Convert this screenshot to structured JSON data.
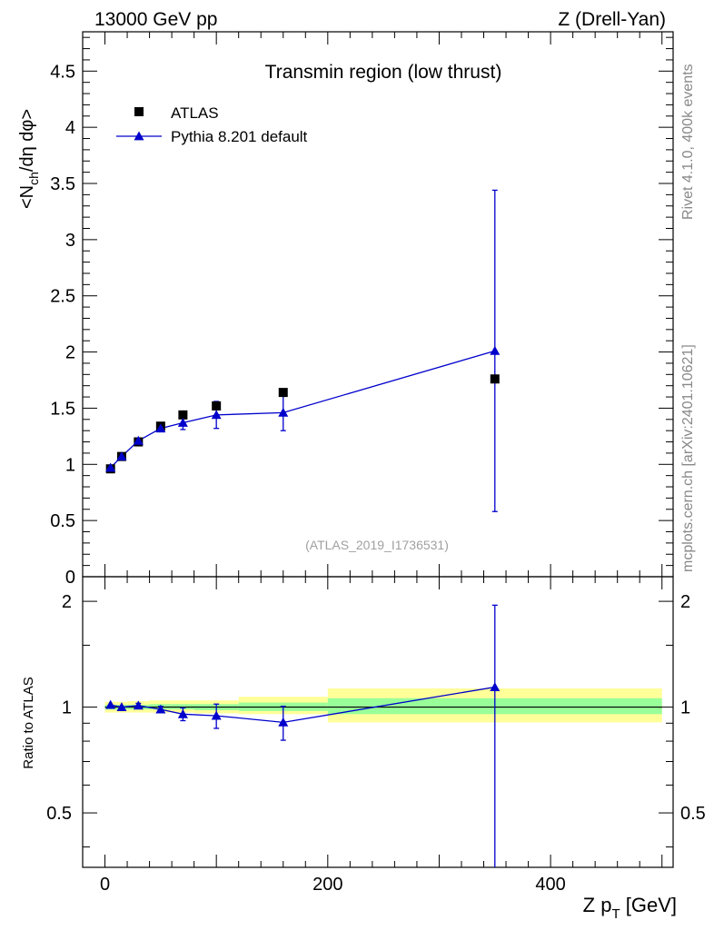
{
  "header": {
    "energy_label": "13000 GeV pp",
    "process_label": "Z (Drell-Yan)"
  },
  "side": {
    "rivet_label": "Rivet 4.1.0,  400k events",
    "source_label": "mcplots.cern.ch [arXiv:2401.10621]"
  },
  "chart_data": [
    {
      "type": "scatter",
      "panel": "main",
      "title": "Transmin region (low thrust)",
      "ylabel": "<N_ch/dη dφ>",
      "ylabel_parts": {
        "a": "<N",
        "sub": "ch",
        "b": "/dη dφ>"
      },
      "watermark": "(ATLAS_2019_I1736531)",
      "xlim": [
        -20,
        510
      ],
      "ylim": [
        0,
        4.85
      ],
      "yticks": [
        0,
        0.5,
        1,
        1.5,
        2,
        2.5,
        3,
        3.5,
        4,
        4.5
      ],
      "ytick_labels": [
        "0",
        "0.5",
        "1",
        "1.5",
        "2",
        "2.5",
        "3",
        "3.5",
        "4",
        "4.5"
      ],
      "legend_position": "top-left",
      "series": [
        {
          "name": "ATLAS",
          "marker": "square",
          "color": "#000000",
          "x": [
            5,
            15,
            30,
            50,
            70,
            100,
            160,
            350
          ],
          "y": [
            0.96,
            1.07,
            1.2,
            1.34,
            1.44,
            1.52,
            1.64,
            1.76
          ]
        },
        {
          "name": "Pythia 8.201 default",
          "marker": "triangle",
          "color": "#0000cc",
          "x": [
            5,
            15,
            30,
            50,
            70,
            100,
            160,
            350
          ],
          "y": [
            0.97,
            1.07,
            1.21,
            1.32,
            1.37,
            1.44,
            1.46,
            2.01
          ],
          "err": [
            0.02,
            0.02,
            0.02,
            0.03,
            0.06,
            0.12,
            0.16,
            1.43
          ]
        }
      ]
    },
    {
      "type": "scatter",
      "panel": "ratio",
      "ylabel": "Ratio to ATLAS",
      "xlabel": "Z p_T [GeV]",
      "xlabel_parts": {
        "a": "Z p",
        "sub": "T",
        "b": " [GeV]"
      },
      "xlim": [
        -20,
        510
      ],
      "xticks": [
        0,
        200,
        400
      ],
      "xtick_labels": [
        "0",
        "200",
        "400"
      ],
      "ylim": [
        0.35,
        2.35
      ],
      "yscale": "log",
      "yticks": [
        0.5,
        1,
        2
      ],
      "ytick_labels": [
        "0.5",
        "1",
        "2"
      ],
      "bands": [
        {
          "x0": 0,
          "x1": 10,
          "inner": [
            0.985,
            1.015
          ],
          "outer": [
            0.965,
            1.035
          ]
        },
        {
          "x0": 10,
          "x1": 20,
          "inner": [
            0.985,
            1.015
          ],
          "outer": [
            0.965,
            1.035
          ]
        },
        {
          "x0": 20,
          "x1": 40,
          "inner": [
            0.985,
            1.015
          ],
          "outer": [
            0.965,
            1.04
          ]
        },
        {
          "x0": 40,
          "x1": 60,
          "inner": [
            0.985,
            1.02
          ],
          "outer": [
            0.965,
            1.045
          ]
        },
        {
          "x0": 60,
          "x1": 80,
          "inner": [
            0.985,
            1.02
          ],
          "outer": [
            0.965,
            1.045
          ]
        },
        {
          "x0": 80,
          "x1": 120,
          "inner": [
            0.98,
            1.02
          ],
          "outer": [
            0.96,
            1.045
          ]
        },
        {
          "x0": 120,
          "x1": 200,
          "inner": [
            0.975,
            1.03
          ],
          "outer": [
            0.955,
            1.07
          ]
        },
        {
          "x0": 200,
          "x1": 500,
          "inner": [
            0.955,
            1.06
          ],
          "outer": [
            0.905,
            1.13
          ]
        }
      ],
      "series": [
        {
          "name": "Pythia 8.201 default / ATLAS",
          "color": "#0000cc",
          "x": [
            5,
            15,
            30,
            50,
            70,
            100,
            160,
            350
          ],
          "y": [
            1.015,
            1.0,
            1.01,
            0.985,
            0.955,
            0.945,
            0.905,
            1.14
          ],
          "err": [
            0.01,
            0.01,
            0.015,
            0.02,
            0.04,
            0.075,
            0.1,
            0.81
          ]
        }
      ]
    }
  ]
}
